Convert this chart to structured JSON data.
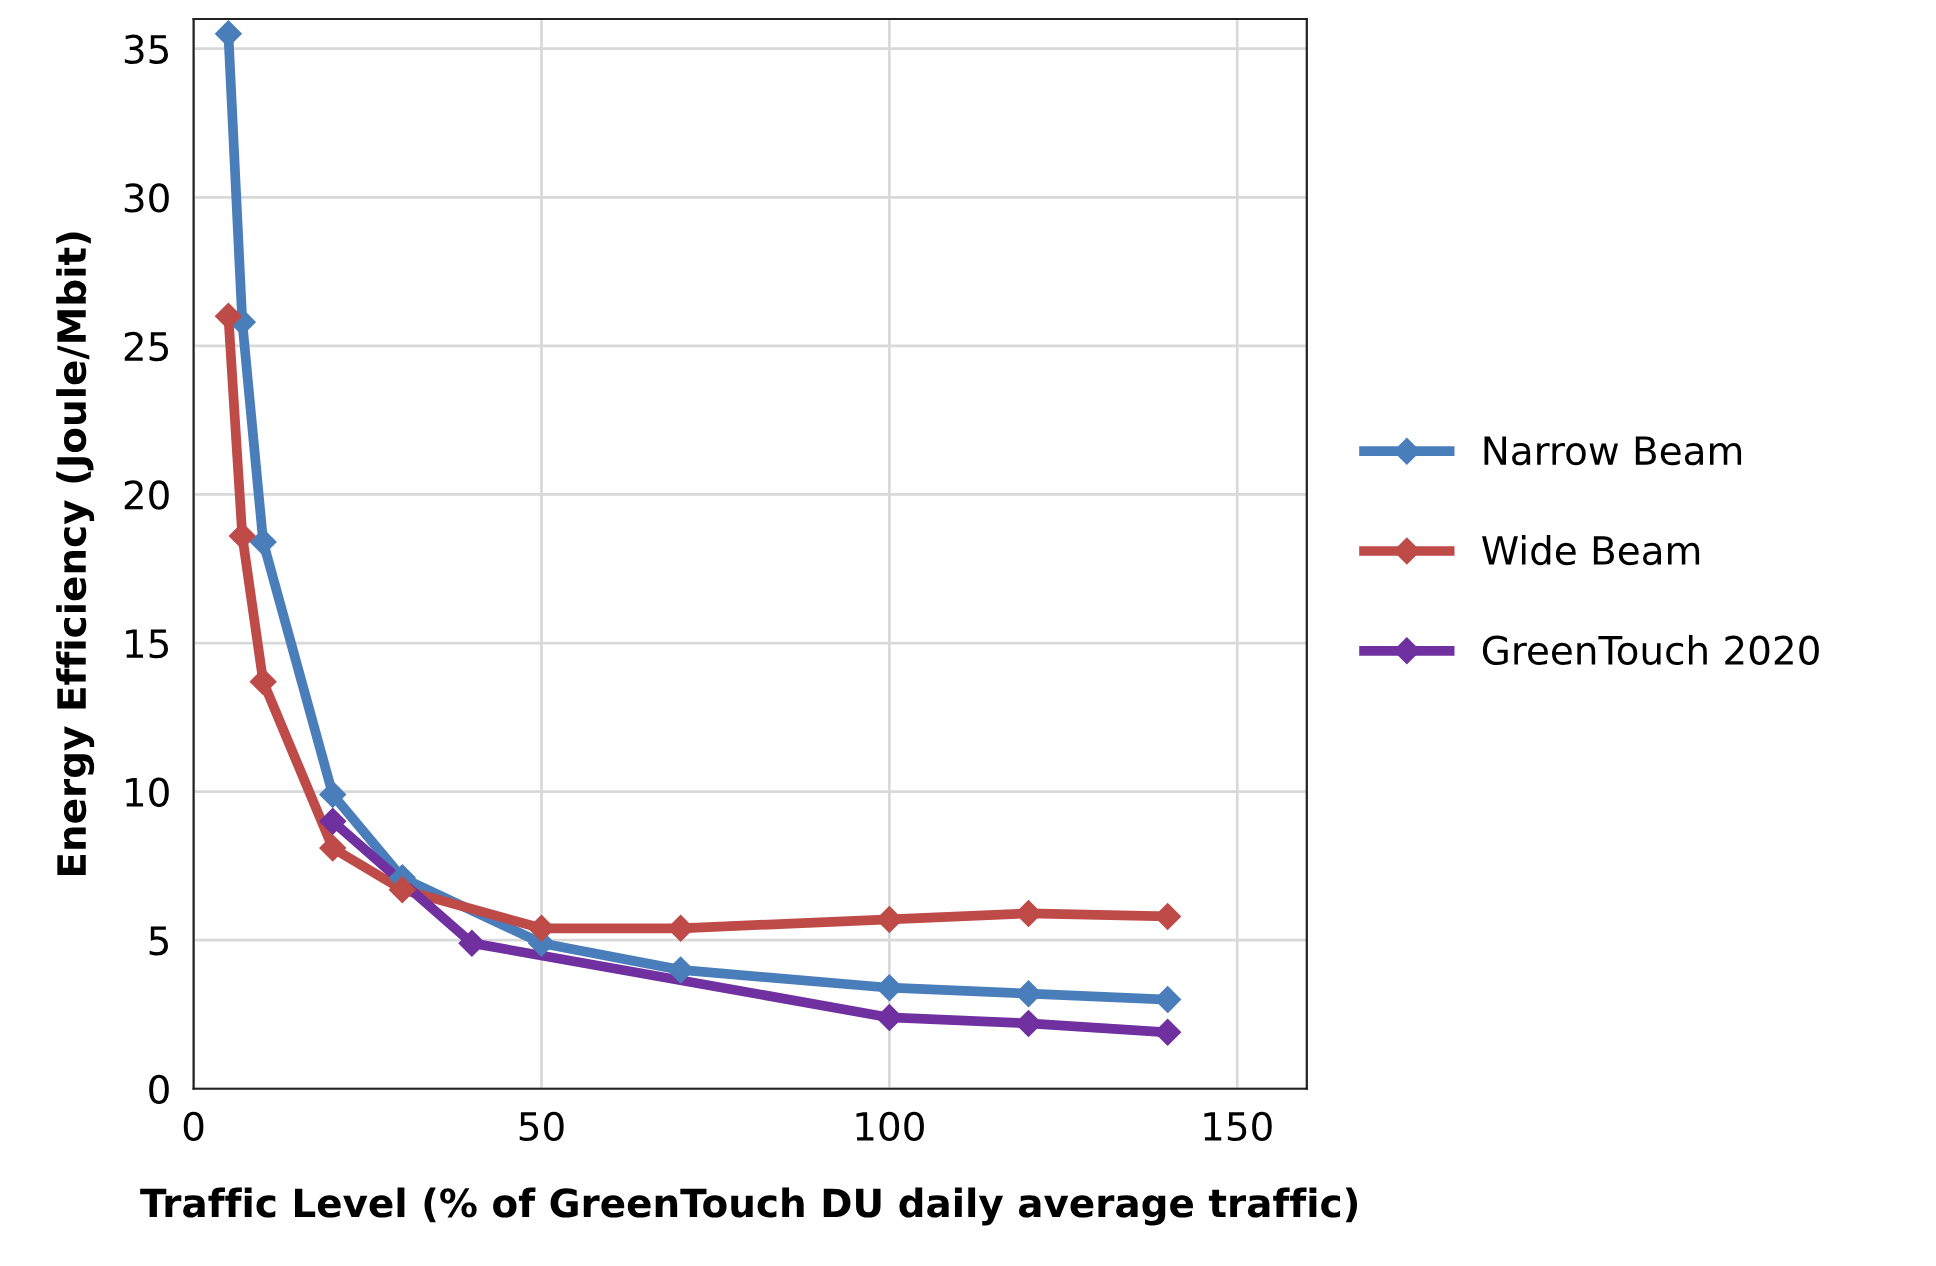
{
  "chart_data": {
    "type": "line",
    "xlabel": "Traffic Level (% of GreenTouch DU daily average traffic)",
    "ylabel": "Energy Efficiency (Joule/Mbit)",
    "xlim": [
      0,
      160
    ],
    "xticks": [
      0,
      50,
      100,
      150
    ],
    "ylim": [
      0,
      36
    ],
    "yticks": [
      0,
      5,
      10,
      15,
      20,
      25,
      30,
      35
    ],
    "grid": true,
    "legend": "right",
    "marker": "diamond",
    "line_style": "solid",
    "series": [
      {
        "name": "Narrow Beam",
        "color": "#4a7ebb",
        "x": [
          5,
          7,
          10,
          20,
          30,
          50,
          70,
          100,
          120,
          140
        ],
        "values": [
          35.5,
          25.8,
          18.4,
          9.9,
          7.1,
          4.9,
          4.0,
          3.4,
          3.2,
          3.0
        ]
      },
      {
        "name": "Wide Beam",
        "color": "#be4b48",
        "x": [
          5,
          7,
          10,
          20,
          30,
          50,
          70,
          100,
          120,
          140
        ],
        "values": [
          26.0,
          18.6,
          13.7,
          8.1,
          6.7,
          5.4,
          5.4,
          5.7,
          5.9,
          5.8
        ]
      },
      {
        "name": "GreenTouch 2020",
        "color": "#7030a0",
        "x": [
          20,
          40,
          100,
          120,
          140
        ],
        "values": [
          9.0,
          4.9,
          2.4,
          2.2,
          1.9
        ]
      }
    ]
  }
}
